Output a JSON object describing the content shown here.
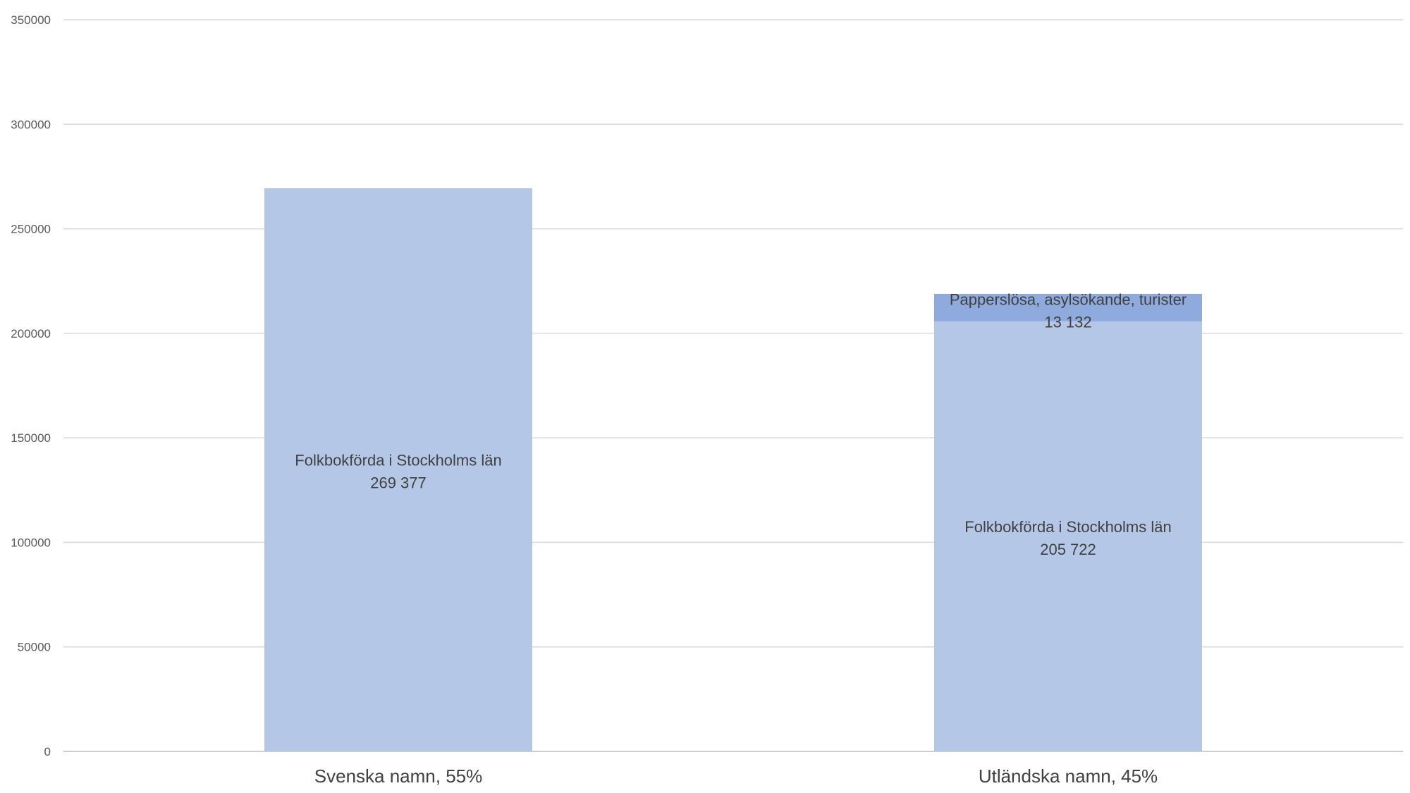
{
  "chart_data": {
    "type": "bar",
    "stacked": true,
    "categories": [
      "Svenska namn, 55%",
      "Utländska namn, 45%"
    ],
    "series": [
      {
        "name": "Folkbokförda i Stockholms län",
        "values": [
          269377,
          205722
        ],
        "labels": [
          "269 377",
          "205 722"
        ],
        "color": "#b4c7e7"
      },
      {
        "name": "Papperslösa, asylsökande, turister",
        "values": [
          0,
          13132
        ],
        "labels": [
          "",
          "13 132"
        ],
        "color": "#8faadc"
      }
    ],
    "ylim": [
      0,
      350000
    ],
    "yticks": [
      0,
      50000,
      100000,
      150000,
      200000,
      250000,
      300000,
      350000
    ],
    "grid": true,
    "legend": "none",
    "title": "",
    "xlabel": "",
    "ylabel": ""
  }
}
